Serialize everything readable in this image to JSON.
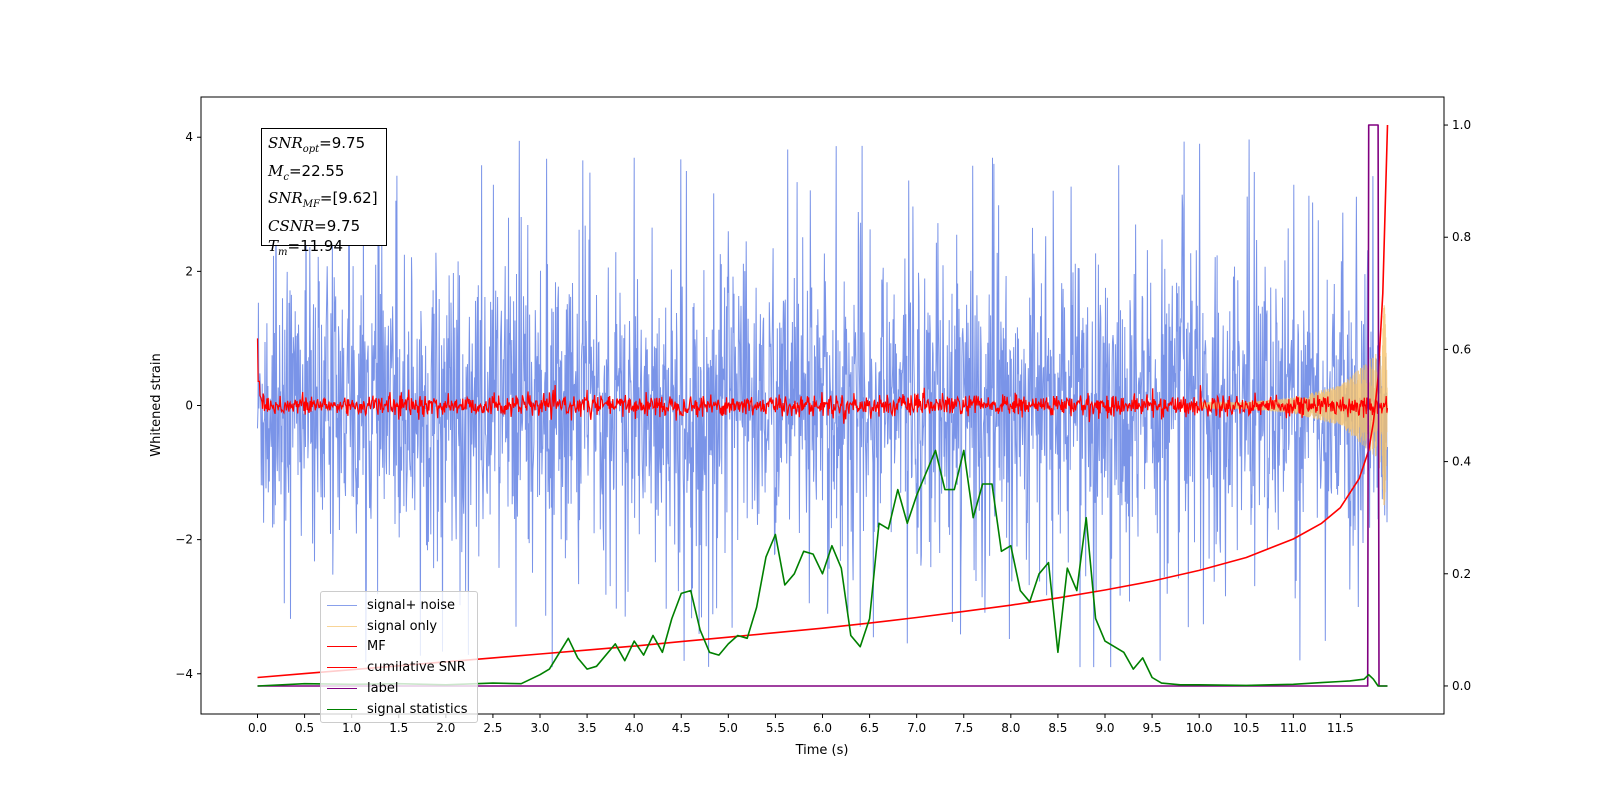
{
  "chart_data": {
    "type": "line",
    "xlabel": "Time (s)",
    "ylabel": "Whitened strain",
    "xlim": [
      -0.6,
      12.6
    ],
    "ylim": [
      -4.6,
      4.6
    ],
    "ylim_right": [
      -0.05,
      1.05
    ],
    "grid": false,
    "legend_position": "lower-left",
    "x_ticks": [
      "0.0",
      "0.5",
      "1.0",
      "1.5",
      "2.0",
      "2.5",
      "3.0",
      "3.5",
      "4.0",
      "4.5",
      "5.0",
      "5.5",
      "6.0",
      "6.5",
      "7.0",
      "7.5",
      "8.0",
      "8.5",
      "9.0",
      "9.5",
      "10.0",
      "10.5",
      "11.0",
      "11.5"
    ],
    "y_ticks_left": [
      "4",
      "2",
      "0",
      "−2",
      "−4"
    ],
    "y_ticks_right": [
      "1.0",
      "0.8",
      "0.6",
      "0.4",
      "0.2",
      "0.0"
    ],
    "annotation": {
      "snr_opt": {
        "label": "SNR",
        "sub": "opt",
        "value": "=9.75"
      },
      "mc": {
        "label": "M",
        "sub": "c",
        "value": "=22.55"
      },
      "snr_mf": {
        "label": "SNR",
        "sub": "MF",
        "value": "=[9.62]"
      },
      "csnr": {
        "label": "CSNR",
        "value": "=9.75"
      },
      "tm": {
        "label": "T",
        "sub": "m",
        "value": "=11.94"
      }
    },
    "series": [
      {
        "name": "signal+ noise",
        "axis": "left",
        "color": "#6b88e6",
        "description_range": [
          -3.9,
          4.2
        ]
      },
      {
        "name": "signal only",
        "axis": "left",
        "color": "#f5c26b",
        "envelope": {
          "x": [
            0,
            10.5,
            11.0,
            11.5,
            11.9,
            12.0
          ],
          "amp": [
            0.02,
            0.05,
            0.12,
            0.3,
            0.8,
            1.9
          ]
        }
      },
      {
        "name": "MF",
        "axis": "left",
        "color": "#ff0000",
        "start_value": 1.0,
        "noise_amplitude": 0.2
      },
      {
        "name": "cumilative SNR",
        "axis": "right",
        "color": "#ff0000",
        "x": [
          0.0,
          0.5,
          1.0,
          1.5,
          2.0,
          2.5,
          3.0,
          3.5,
          4.0,
          4.5,
          5.0,
          5.5,
          6.0,
          6.5,
          7.0,
          7.5,
          8.0,
          8.5,
          9.0,
          9.5,
          10.0,
          10.5,
          11.0,
          11.3,
          11.5,
          11.7,
          11.8,
          11.85,
          11.9,
          11.95,
          12.0
        ],
        "y": [
          0.015,
          0.022,
          0.029,
          0.036,
          0.043,
          0.05,
          0.057,
          0.064,
          0.071,
          0.079,
          0.087,
          0.095,
          0.103,
          0.112,
          0.122,
          0.133,
          0.144,
          0.157,
          0.171,
          0.187,
          0.206,
          0.229,
          0.262,
          0.29,
          0.318,
          0.37,
          0.42,
          0.47,
          0.55,
          0.7,
          1.0
        ]
      },
      {
        "name": "label",
        "axis": "right",
        "color": "#800080",
        "x": [
          0.0,
          11.79,
          11.8,
          11.9,
          11.91,
          12.0
        ],
        "y": [
          0.0,
          0.0,
          1.0,
          1.0,
          0.0,
          0.0
        ]
      },
      {
        "name": "signal statistics",
        "axis": "right",
        "color": "#008000",
        "x": [
          0.0,
          0.5,
          1.0,
          1.5,
          2.0,
          2.5,
          2.8,
          3.0,
          3.1,
          3.3,
          3.4,
          3.5,
          3.6,
          3.8,
          3.9,
          4.0,
          4.1,
          4.2,
          4.3,
          4.4,
          4.5,
          4.6,
          4.7,
          4.8,
          4.9,
          5.0,
          5.1,
          5.2,
          5.3,
          5.4,
          5.5,
          5.6,
          5.7,
          5.8,
          5.9,
          6.0,
          6.1,
          6.2,
          6.3,
          6.4,
          6.5,
          6.6,
          6.7,
          6.8,
          6.9,
          7.0,
          7.1,
          7.2,
          7.3,
          7.4,
          7.5,
          7.6,
          7.7,
          7.8,
          7.9,
          8.0,
          8.1,
          8.2,
          8.3,
          8.4,
          8.5,
          8.6,
          8.7,
          8.8,
          8.9,
          9.0,
          9.1,
          9.2,
          9.3,
          9.4,
          9.5,
          9.6,
          9.8,
          10.0,
          10.5,
          11.0,
          11.3,
          11.5,
          11.6,
          11.75,
          11.8,
          11.85,
          11.9,
          12.0
        ],
        "y": [
          0.0,
          0.004,
          0.003,
          0.004,
          0.002,
          0.005,
          0.004,
          0.02,
          0.03,
          0.085,
          0.05,
          0.03,
          0.035,
          0.075,
          0.045,
          0.08,
          0.055,
          0.09,
          0.06,
          0.12,
          0.165,
          0.17,
          0.1,
          0.06,
          0.055,
          0.075,
          0.09,
          0.085,
          0.14,
          0.23,
          0.27,
          0.18,
          0.2,
          0.24,
          0.235,
          0.2,
          0.25,
          0.21,
          0.09,
          0.07,
          0.12,
          0.29,
          0.28,
          0.35,
          0.29,
          0.34,
          0.38,
          0.42,
          0.35,
          0.35,
          0.42,
          0.3,
          0.36,
          0.36,
          0.24,
          0.25,
          0.17,
          0.15,
          0.2,
          0.22,
          0.06,
          0.21,
          0.17,
          0.3,
          0.12,
          0.08,
          0.07,
          0.06,
          0.03,
          0.05,
          0.015,
          0.005,
          0.002,
          0.002,
          0.001,
          0.003,
          0.006,
          0.008,
          0.009,
          0.012,
          0.02,
          0.012,
          0.0,
          0.0
        ]
      }
    ]
  }
}
